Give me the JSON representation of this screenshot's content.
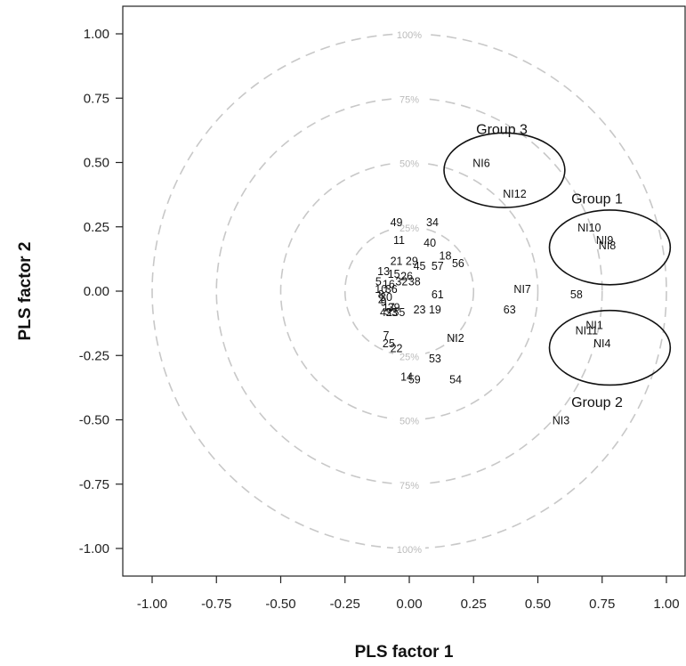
{
  "chart_data": {
    "type": "scatter",
    "title": "",
    "xlabel": "PLS factor 1",
    "ylabel": "PLS factor 2",
    "xlim": [
      -1.1,
      1.1
    ],
    "ylim": [
      -1.1,
      1.1
    ],
    "x_ticks": [
      "-1.00",
      "-0.75",
      "-0.50",
      "-0.25",
      "0.00",
      "0.25",
      "0.50",
      "0.75",
      "1.00"
    ],
    "y_ticks": [
      "1.00",
      "0.75",
      "0.50",
      "0.25",
      "0.00",
      "-0.25",
      "-0.50",
      "-0.75",
      "-1.00"
    ],
    "grid": false,
    "reference_circles": [
      {
        "radius": 1.0,
        "label": "100%"
      },
      {
        "radius": 0.75,
        "label": "75%"
      },
      {
        "radius": 0.5,
        "label": "50%"
      },
      {
        "radius": 0.25,
        "label": "25%"
      }
    ],
    "points": [
      {
        "label": "NI6",
        "x": 0.28,
        "y": 0.5
      },
      {
        "label": "NI12",
        "x": 0.41,
        "y": 0.38
      },
      {
        "label": "NI10",
        "x": 0.7,
        "y": 0.25
      },
      {
        "label": "NI9",
        "x": 0.76,
        "y": 0.2
      },
      {
        "label": "NI8",
        "x": 0.77,
        "y": 0.18
      },
      {
        "label": "NI7",
        "x": 0.44,
        "y": 0.01
      },
      {
        "label": "58",
        "x": 0.65,
        "y": -0.01
      },
      {
        "label": "63",
        "x": 0.39,
        "y": -0.07
      },
      {
        "label": "NI1",
        "x": 0.72,
        "y": -0.13
      },
      {
        "label": "NI11",
        "x": 0.69,
        "y": -0.15
      },
      {
        "label": "NI4",
        "x": 0.75,
        "y": -0.2
      },
      {
        "label": "NI3",
        "x": 0.59,
        "y": -0.5
      },
      {
        "label": "NI2",
        "x": 0.18,
        "y": -0.18
      },
      {
        "label": "53",
        "x": 0.1,
        "y": -0.26
      },
      {
        "label": "54",
        "x": 0.18,
        "y": -0.34
      },
      {
        "label": "14",
        "x": -0.01,
        "y": -0.33
      },
      {
        "label": "59",
        "x": 0.02,
        "y": -0.34
      },
      {
        "label": "7",
        "x": -0.09,
        "y": -0.17
      },
      {
        "label": "25",
        "x": -0.08,
        "y": -0.2
      },
      {
        "label": "22",
        "x": -0.05,
        "y": -0.22
      },
      {
        "label": "19",
        "x": 0.1,
        "y": -0.07
      },
      {
        "label": "61",
        "x": 0.11,
        "y": -0.01
      },
      {
        "label": "23",
        "x": 0.04,
        "y": -0.07
      },
      {
        "label": "49",
        "x": -0.05,
        "y": 0.27
      },
      {
        "label": "34",
        "x": 0.09,
        "y": 0.27
      },
      {
        "label": "11",
        "x": -0.04,
        "y": 0.2
      },
      {
        "label": "40",
        "x": 0.08,
        "y": 0.19
      },
      {
        "label": "18",
        "x": 0.14,
        "y": 0.14
      },
      {
        "label": "56",
        "x": 0.19,
        "y": 0.11
      },
      {
        "label": "57",
        "x": 0.11,
        "y": 0.1
      },
      {
        "label": "45",
        "x": 0.04,
        "y": 0.1
      },
      {
        "label": "21",
        "x": -0.05,
        "y": 0.12
      },
      {
        "label": "29",
        "x": 0.01,
        "y": 0.12
      },
      {
        "label": "26",
        "x": -0.01,
        "y": 0.06
      },
      {
        "label": "13",
        "x": -0.1,
        "y": 0.08
      },
      {
        "label": "15",
        "x": -0.06,
        "y": 0.07
      },
      {
        "label": "32",
        "x": -0.03,
        "y": 0.04
      },
      {
        "label": "36",
        "x": -0.07,
        "y": 0.01
      },
      {
        "label": "38",
        "x": 0.02,
        "y": 0.04
      },
      {
        "label": "5",
        "x": -0.12,
        "y": 0.04
      },
      {
        "label": "8",
        "x": -0.11,
        "y": -0.01
      },
      {
        "label": "10",
        "x": -0.11,
        "y": 0.01
      },
      {
        "label": "30",
        "x": -0.09,
        "y": -0.02
      },
      {
        "label": "16",
        "x": -0.08,
        "y": 0.03
      },
      {
        "label": "2",
        "x": -0.11,
        "y": -0.03
      },
      {
        "label": "9",
        "x": -0.1,
        "y": -0.04
      },
      {
        "label": "17",
        "x": -0.08,
        "y": -0.06
      },
      {
        "label": "39",
        "x": -0.06,
        "y": -0.06
      },
      {
        "label": "42",
        "x": -0.09,
        "y": -0.08
      },
      {
        "label": "33",
        "x": -0.07,
        "y": -0.08
      },
      {
        "label": "55",
        "x": -0.04,
        "y": -0.08
      }
    ],
    "groups": [
      {
        "label": "Group 3",
        "cx": 0.37,
        "cy": 0.47,
        "rx": 0.235,
        "ry": 0.145,
        "label_x": 0.26,
        "label_y": 0.61
      },
      {
        "label": "Group 1",
        "cx": 0.78,
        "cy": 0.17,
        "rx": 0.235,
        "ry": 0.145,
        "label_x": 0.63,
        "label_y": 0.34
      },
      {
        "label": "Group 2",
        "cx": 0.78,
        "cy": -0.22,
        "rx": 0.235,
        "ry": 0.145,
        "label_x": 0.63,
        "label_y": -0.45
      }
    ]
  }
}
